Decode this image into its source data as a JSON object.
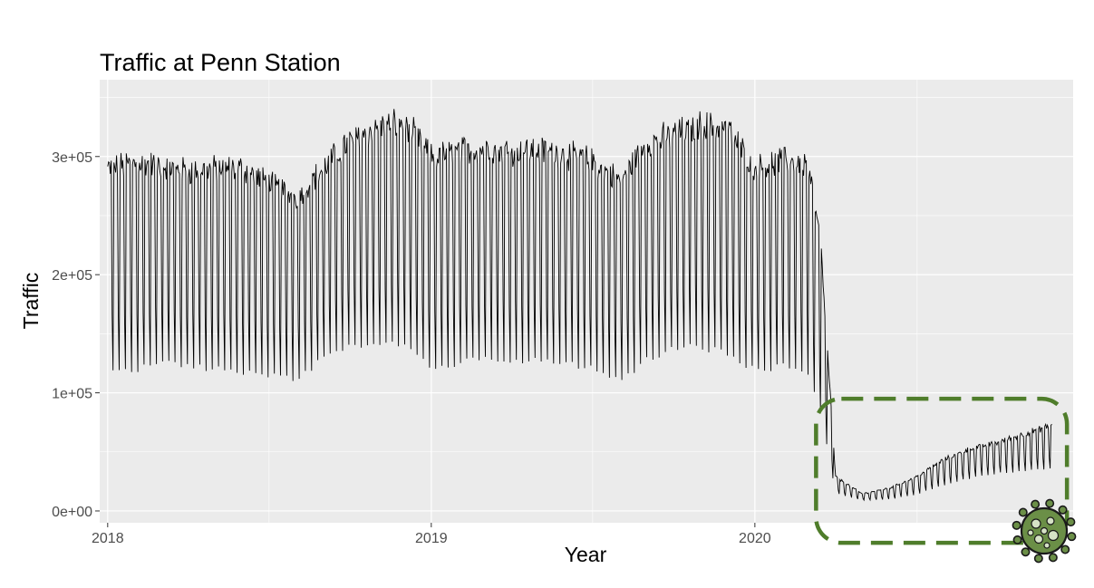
{
  "chart_data": {
    "type": "line",
    "title": "Traffic at Penn Station",
    "xlabel": "Year",
    "ylabel": "Traffic",
    "x_ticks": [
      "2018",
      "2019",
      "2020"
    ],
    "y_ticks": [
      "0e+00",
      "1e+05",
      "2e+05",
      "3e+05"
    ],
    "x_range": [
      "2017-12-23",
      "2020-12-25"
    ],
    "ylim": [
      -10000,
      365000
    ],
    "grid": true,
    "legend": "none",
    "series": [
      {
        "x": [
          "2018-01-01",
          "2018-02-01",
          "2018-03-01",
          "2018-04-01",
          "2018-05-01",
          "2018-06-01",
          "2018-07-01",
          "2018-08-01",
          "2018-09-01",
          "2018-10-01",
          "2018-11-01",
          "2018-12-01",
          "2019-01-01",
          "2019-02-01",
          "2019-03-01",
          "2019-04-01",
          "2019-05-01",
          "2019-06-01",
          "2019-07-01",
          "2019-08-01",
          "2019-09-01",
          "2019-10-01",
          "2019-11-01",
          "2019-12-01",
          "2020-01-01",
          "2020-02-01",
          "2020-03-01",
          "2020-03-15",
          "2020-04-01",
          "2020-05-01",
          "2020-06-01",
          "2020-07-01",
          "2020-08-01",
          "2020-09-01",
          "2020-10-01",
          "2020-11-01",
          "2020-12-01"
        ],
        "weekday_peak": [
          300000,
          305000,
          304000,
          298000,
          300000,
          300000,
          288000,
          275000,
          300000,
          325000,
          335000,
          342000,
          310000,
          315000,
          318000,
          316000,
          316000,
          313000,
          307000,
          290000,
          322000,
          330000,
          338000,
          335000,
          300000,
          307000,
          305000,
          235000,
          30000,
          15000,
          20000,
          30000,
          45000,
          55000,
          60000,
          68000,
          75000
        ],
        "weekend_low": [
          120000,
          120000,
          125000,
          122000,
          120000,
          118000,
          115000,
          112000,
          128000,
          140000,
          142000,
          140000,
          120000,
          125000,
          130000,
          128000,
          128000,
          126000,
          120000,
          110000,
          128000,
          138000,
          140000,
          132000,
          120000,
          122000,
          118000,
          85000,
          15000,
          9000,
          10000,
          14000,
          22000,
          28000,
          32000,
          34000,
          36000
        ]
      }
    ],
    "annotation": {
      "type": "dashed-rounded-box",
      "color": "#4f7d2b",
      "x_range": [
        "2020-03-10",
        "2020-12-18"
      ],
      "y_range": [
        -27000,
        95000
      ],
      "icon": "virus-icon"
    }
  }
}
